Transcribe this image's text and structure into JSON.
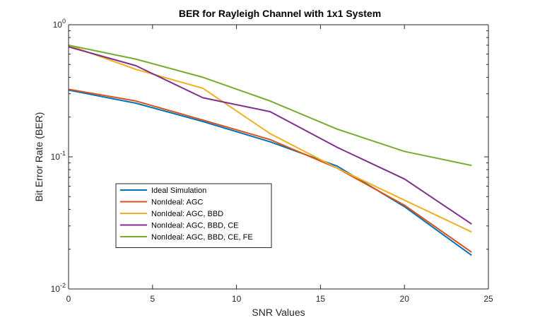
{
  "chart_data": {
    "type": "line",
    "title": "BER for Rayleigh Channel with 1x1 System",
    "xlabel": "SNR Values",
    "ylabel": "Bit Error Rate (BER)",
    "xlim": [
      0,
      25
    ],
    "ylim": [
      0.01,
      1
    ],
    "yscale": "log",
    "grid": false,
    "legend_position": "lower-left",
    "x_ticks": [
      "0",
      "5",
      "10",
      "15",
      "20",
      "25"
    ],
    "y_ticks": [
      {
        "base": "10",
        "exp": "0",
        "value": 1
      },
      {
        "base": "10",
        "exp": "-1",
        "value": 0.1
      },
      {
        "base": "10",
        "exp": "-2",
        "value": 0.01
      }
    ],
    "x": [
      0,
      4,
      8,
      12,
      16,
      20,
      24
    ],
    "series": [
      {
        "name": "Ideal Simulation",
        "color": "#0072BD",
        "values": [
          0.32,
          0.255,
          0.185,
          0.13,
          0.085,
          0.042,
          0.018
        ]
      },
      {
        "name": "NonIdeal: AGC",
        "color": "#D95319",
        "values": [
          0.325,
          0.265,
          0.19,
          0.135,
          0.082,
          0.043,
          0.019
        ]
      },
      {
        "name": "NonIdeal: AGC, BBD",
        "color": "#EDB120",
        "values": [
          0.7,
          0.46,
          0.33,
          0.15,
          0.082,
          0.047,
          0.027
        ]
      },
      {
        "name": "NonIdeal: AGC, BBD, CE",
        "color": "#7E2F8E",
        "values": [
          0.68,
          0.49,
          0.28,
          0.22,
          0.118,
          0.068,
          0.031
        ]
      },
      {
        "name": "NonIdeal: AGC, BBD, CE, FE",
        "color": "#77AC30",
        "values": [
          0.7,
          0.55,
          0.4,
          0.265,
          0.162,
          0.11,
          0.086
        ]
      }
    ]
  }
}
